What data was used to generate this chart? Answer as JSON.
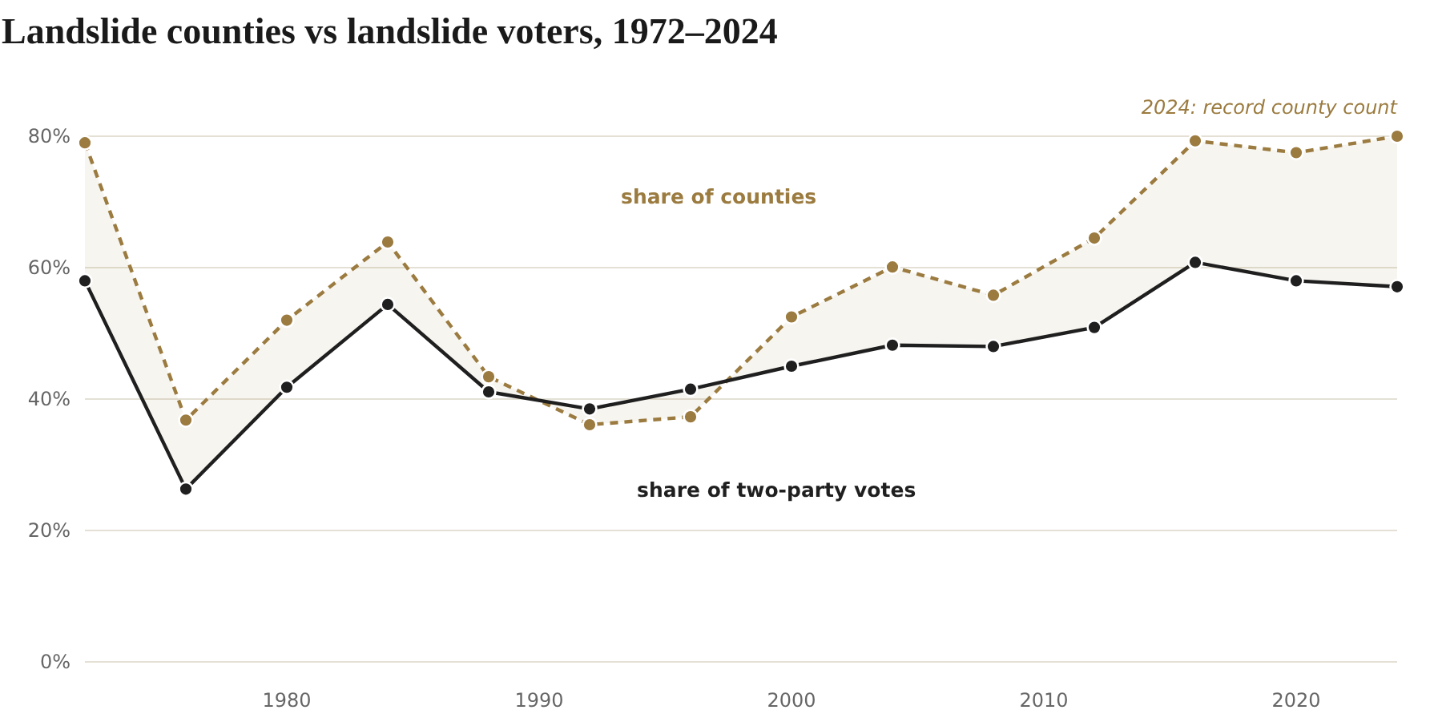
{
  "chart_data": {
    "type": "line",
    "title": "Landslide counties vs landslide voters, 1972–2024",
    "x": [
      1972,
      1976,
      1980,
      1984,
      1988,
      1992,
      1996,
      2000,
      2004,
      2008,
      2012,
      2016,
      2020,
      2024
    ],
    "series": [
      {
        "name": "share of counties",
        "color": "#9b7b3f",
        "line_style": "dashed",
        "values": [
          79.0,
          36.8,
          52.0,
          63.9,
          43.4,
          36.1,
          37.3,
          52.5,
          60.1,
          55.8,
          64.5,
          79.3,
          77.5,
          80.0
        ],
        "lower": [
          58.0,
          26.3,
          41.8,
          54.4,
          41.1,
          38.5,
          41.5,
          45.0,
          48.2,
          48.0,
          50.9,
          60.8,
          58.0,
          57.1
        ],
        "upper": [
          79.0,
          36.8,
          52.0,
          63.9,
          43.4,
          36.1,
          37.3,
          52.5,
          60.1,
          55.8,
          64.5,
          79.3,
          77.5,
          80.0
        ]
      },
      {
        "name": "share of two-party votes",
        "color": "#1f1f1f",
        "line_style": "solid",
        "values": [
          58.0,
          26.3,
          41.8,
          54.4,
          41.1,
          38.5,
          41.5,
          45.0,
          48.2,
          48.0,
          50.9,
          60.8,
          58.0,
          57.1
        ]
      }
    ],
    "xlim": [
      1972,
      2024
    ],
    "xticks": [
      1980,
      1990,
      2000,
      2010,
      2020
    ],
    "ylim": [
      0,
      80
    ],
    "yticks": [
      {
        "value": 0,
        "label": "0%"
      },
      {
        "value": 20,
        "label": "20%"
      },
      {
        "value": 40,
        "label": "40%"
      },
      {
        "value": 60,
        "label": "60%"
      },
      {
        "value": 80,
        "label": "80%"
      }
    ],
    "grid": "y",
    "marker": "circle",
    "annotations": [
      {
        "text": "2024: record county count",
        "x": 2024,
        "y": 80
      }
    ]
  }
}
